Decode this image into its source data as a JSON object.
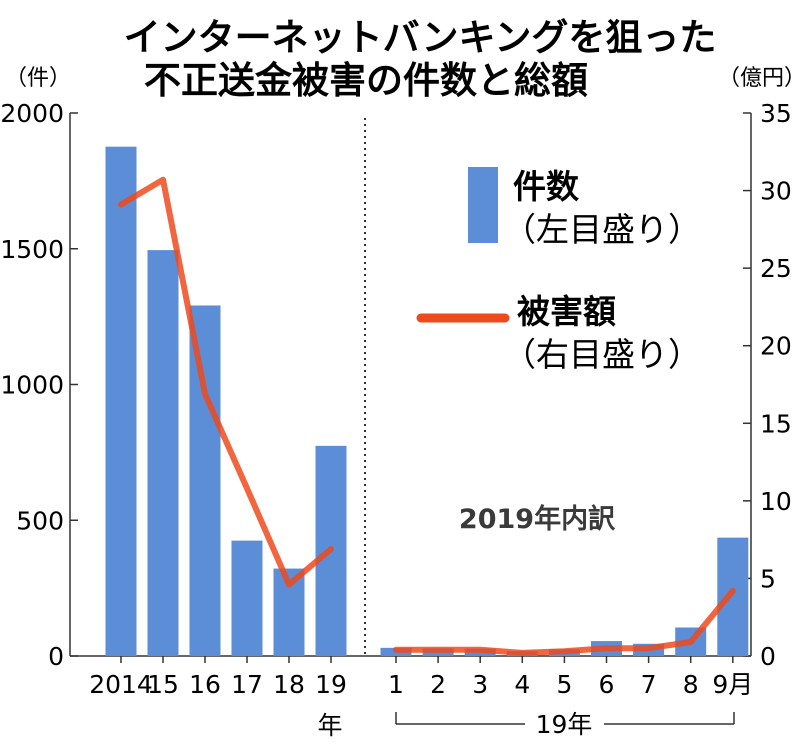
{
  "chart_data": {
    "type": "bar",
    "title_line1": "インターネットバンキングを狙った",
    "title_line2": "不正送金被害の件数と総額",
    "left_axis": {
      "unit": "（件）",
      "ylim": [
        0,
        2000
      ],
      "ticks": [
        "0",
        "500",
        "1000",
        "1500",
        "2000"
      ],
      "tick_values": [
        0,
        500,
        1000,
        1500,
        2000
      ]
    },
    "right_axis": {
      "unit": "（億円）",
      "ylim": [
        0,
        35
      ],
      "ticks": [
        "0",
        "5",
        "10",
        "15",
        "20",
        "25",
        "30",
        "35"
      ],
      "tick_values": [
        0,
        5,
        10,
        15,
        20,
        25,
        30,
        35
      ]
    },
    "left_panel": {
      "categories": [
        "2014",
        "15",
        "16",
        "17",
        "18",
        "19"
      ],
      "year_suffix": "年",
      "counts": [
        1876,
        1495,
        1291,
        425,
        322,
        774
      ],
      "losses": [
        29.1,
        30.7,
        16.9,
        10.8,
        4.6,
        6.9
      ]
    },
    "right_panel": {
      "subtitle": "2019年内訳",
      "categories": [
        "1",
        "2",
        "3",
        "4",
        "5",
        "6",
        "7",
        "8",
        "9月"
      ],
      "period_label": "19年",
      "counts": [
        30,
        28,
        27,
        18,
        25,
        55,
        45,
        105,
        436
      ],
      "losses": [
        0.4,
        0.4,
        0.4,
        0.2,
        0.3,
        0.5,
        0.5,
        0.9,
        4.2
      ]
    },
    "legend": {
      "bar_label": "件数",
      "bar_note": "（左目盛り）",
      "line_label": "被害額",
      "line_note": "（右目盛り）"
    },
    "colors": {
      "bar": "#5b8ed6",
      "line": "#ee4a1d"
    }
  }
}
